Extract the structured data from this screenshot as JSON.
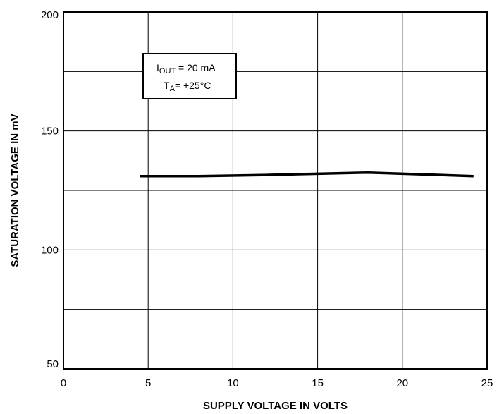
{
  "chart_data": {
    "type": "line",
    "title": "",
    "xlabel": "SUPPLY VOLTAGE IN VOLTS",
    "ylabel": "SATURATION VOLTAGE IN mV",
    "xlim": [
      0,
      25
    ],
    "ylim": [
      50,
      200
    ],
    "x_ticks": [
      0,
      5,
      10,
      15,
      20,
      25
    ],
    "y_ticks": [
      50,
      100,
      150,
      200
    ],
    "x_tick_labels": [
      "0",
      "5",
      "10",
      "15",
      "20",
      "25"
    ],
    "y_tick_labels": [
      "50",
      "100",
      "150",
      "200"
    ],
    "grid": true,
    "y_gridlines": [
      75,
      100,
      125,
      150,
      175
    ],
    "x_gridlines": [
      5,
      10,
      15,
      20
    ],
    "series": [
      {
        "x": [
          4.5,
          8,
          12,
          15,
          18,
          24.2
        ],
        "y": [
          131,
          131,
          131.5,
          132,
          132.5,
          131
        ],
        "color": "#000000"
      }
    ],
    "legend": {
      "position": "top-left",
      "iout_main": "I",
      "iout_sub": "OUT",
      "iout_rest": " = 20 mA",
      "ta_main": "T",
      "ta_sub": "A",
      "ta_rest": "= +25°C"
    }
  }
}
